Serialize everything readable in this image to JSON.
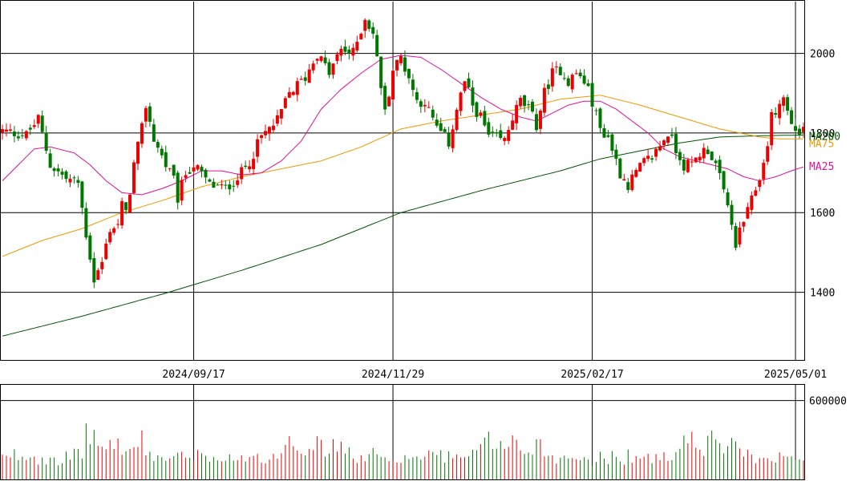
{
  "chart_data": {
    "type": "candlestick",
    "price_axis": {
      "min": 1230,
      "max": 2130,
      "ticks": [
        1400,
        1600,
        1800,
        2000
      ]
    },
    "volume_axis": {
      "min": 0,
      "max": 720000,
      "ticks": [
        600000
      ]
    },
    "date_ticks": [
      {
        "label": "2024/09/17",
        "index": 48
      },
      {
        "label": "2024/11/29",
        "index": 98
      },
      {
        "label": "2025/02/17",
        "index": 148
      },
      {
        "label": "2025/05/01",
        "index": 199
      }
    ],
    "ma_labels": {
      "ma25": "MA25",
      "ma75": "MA75",
      "ma200": "MA200"
    },
    "colors": {
      "up": "#ee0000",
      "down": "#007700",
      "ma25": "#dd1199",
      "ma75": "#ee9900",
      "ma200": "#005500",
      "grid": "#000000",
      "frame": "#000000"
    },
    "price_keypoints": [
      [
        0,
        1805
      ],
      [
        6,
        1795
      ],
      [
        9,
        1835
      ],
      [
        12,
        1720
      ],
      [
        16,
        1685
      ],
      [
        19,
        1675
      ],
      [
        21,
        1545
      ],
      [
        22,
        1490
      ],
      [
        23,
        1430
      ],
      [
        25,
        1475
      ],
      [
        27,
        1560
      ],
      [
        29,
        1570
      ],
      [
        30,
        1620
      ],
      [
        31,
        1595
      ],
      [
        33,
        1720
      ],
      [
        35,
        1810
      ],
      [
        36,
        1870
      ],
      [
        38,
        1785
      ],
      [
        41,
        1720
      ],
      [
        43,
        1680
      ],
      [
        44,
        1635
      ],
      [
        46,
        1700
      ],
      [
        48,
        1720
      ],
      [
        52,
        1670
      ],
      [
        56,
        1660
      ],
      [
        60,
        1700
      ],
      [
        62,
        1730
      ],
      [
        65,
        1790
      ],
      [
        69,
        1830
      ],
      [
        72,
        1900
      ],
      [
        76,
        1940
      ],
      [
        79,
        2000
      ],
      [
        82,
        1950
      ],
      [
        85,
        2010
      ],
      [
        88,
        2000
      ],
      [
        91,
        2090
      ],
      [
        93,
        2050
      ],
      [
        95,
        1920
      ],
      [
        96,
        1850
      ],
      [
        98,
        1960
      ],
      [
        100,
        1990
      ],
      [
        102,
        1940
      ],
      [
        104,
        1880
      ],
      [
        106,
        1880
      ],
      [
        108,
        1830
      ],
      [
        110,
        1800
      ],
      [
        112,
        1775
      ],
      [
        114,
        1860
      ],
      [
        116,
        1930
      ],
      [
        118,
        1870
      ],
      [
        120,
        1840
      ],
      [
        122,
        1790
      ],
      [
        124,
        1785
      ],
      [
        126,
        1780
      ],
      [
        128,
        1840
      ],
      [
        130,
        1880
      ],
      [
        132,
        1860
      ],
      [
        134,
        1820
      ],
      [
        136,
        1900
      ],
      [
        138,
        1950
      ],
      [
        140,
        1960
      ],
      [
        142,
        1930
      ],
      [
        144,
        1950
      ],
      [
        146,
        1930
      ],
      [
        148,
        1880
      ],
      [
        150,
        1810
      ],
      [
        152,
        1790
      ],
      [
        155,
        1700
      ],
      [
        157,
        1670
      ],
      [
        159,
        1700
      ],
      [
        161,
        1725
      ],
      [
        163,
        1740
      ],
      [
        165,
        1770
      ],
      [
        167,
        1800
      ],
      [
        169,
        1760
      ],
      [
        171,
        1720
      ],
      [
        173,
        1720
      ],
      [
        175,
        1750
      ],
      [
        177,
        1760
      ],
      [
        179,
        1720
      ],
      [
        181,
        1650
      ],
      [
        183,
        1580
      ],
      [
        184,
        1500
      ],
      [
        185,
        1560
      ],
      [
        187,
        1600
      ],
      [
        189,
        1660
      ],
      [
        191,
        1720
      ],
      [
        193,
        1840
      ],
      [
        195,
        1870
      ],
      [
        196,
        1890
      ],
      [
        198,
        1820
      ],
      [
        200,
        1800
      ],
      [
        201,
        1815
      ]
    ],
    "volume_pattern": [
      170000,
      150000,
      160000,
      190000,
      170000,
      180000,
      160000,
      200000,
      170000,
      150000,
      180000,
      160000,
      190000,
      170000,
      150000,
      140000,
      170000,
      160000,
      180000,
      190000,
      210000,
      350000,
      380000,
      290000,
      300000,
      250000,
      220000,
      270000,
      300000,
      260000,
      240000,
      230000,
      200000,
      250000,
      270000,
      290000,
      210000,
      190000,
      180000,
      170000,
      160000,
      150000,
      170000,
      190000,
      180000,
      170000,
      160000,
      150000,
      140000,
      180000
    ],
    "ma25_keypoints": [
      [
        0,
        1680
      ],
      [
        4,
        1720
      ],
      [
        8,
        1760
      ],
      [
        12,
        1765
      ],
      [
        18,
        1750
      ],
      [
        22,
        1720
      ],
      [
        26,
        1680
      ],
      [
        30,
        1650
      ],
      [
        35,
        1645
      ],
      [
        40,
        1660
      ],
      [
        45,
        1680
      ],
      [
        50,
        1705
      ],
      [
        55,
        1705
      ],
      [
        60,
        1695
      ],
      [
        65,
        1700
      ],
      [
        70,
        1730
      ],
      [
        75,
        1780
      ],
      [
        80,
        1860
      ],
      [
        85,
        1910
      ],
      [
        90,
        1950
      ],
      [
        95,
        1985
      ],
      [
        100,
        1995
      ],
      [
        105,
        1990
      ],
      [
        110,
        1960
      ],
      [
        115,
        1925
      ],
      [
        120,
        1890
      ],
      [
        125,
        1860
      ],
      [
        130,
        1840
      ],
      [
        134,
        1830
      ],
      [
        138,
        1850
      ],
      [
        142,
        1870
      ],
      [
        146,
        1880
      ],
      [
        150,
        1880
      ],
      [
        154,
        1860
      ],
      [
        158,
        1830
      ],
      [
        162,
        1800
      ],
      [
        166,
        1760
      ],
      [
        170,
        1740
      ],
      [
        174,
        1730
      ],
      [
        178,
        1720
      ],
      [
        182,
        1710
      ],
      [
        186,
        1690
      ],
      [
        190,
        1680
      ],
      [
        194,
        1690
      ],
      [
        198,
        1705
      ],
      [
        201,
        1715
      ]
    ],
    "ma75_keypoints": [
      [
        0,
        1490
      ],
      [
        10,
        1530
      ],
      [
        20,
        1560
      ],
      [
        30,
        1600
      ],
      [
        40,
        1630
      ],
      [
        50,
        1665
      ],
      [
        60,
        1690
      ],
      [
        70,
        1710
      ],
      [
        80,
        1730
      ],
      [
        90,
        1765
      ],
      [
        100,
        1810
      ],
      [
        110,
        1830
      ],
      [
        120,
        1845
      ],
      [
        130,
        1860
      ],
      [
        140,
        1885
      ],
      [
        150,
        1895
      ],
      [
        160,
        1870
      ],
      [
        170,
        1840
      ],
      [
        180,
        1810
      ],
      [
        190,
        1790
      ],
      [
        195,
        1785
      ],
      [
        201,
        1785
      ]
    ],
    "ma200_keypoints": [
      [
        0,
        1290
      ],
      [
        20,
        1340
      ],
      [
        40,
        1395
      ],
      [
        60,
        1455
      ],
      [
        80,
        1520
      ],
      [
        100,
        1600
      ],
      [
        120,
        1655
      ],
      [
        140,
        1705
      ],
      [
        150,
        1735
      ],
      [
        160,
        1755
      ],
      [
        170,
        1775
      ],
      [
        180,
        1790
      ],
      [
        190,
        1793
      ],
      [
        201,
        1795
      ]
    ],
    "last_index": 201
  }
}
